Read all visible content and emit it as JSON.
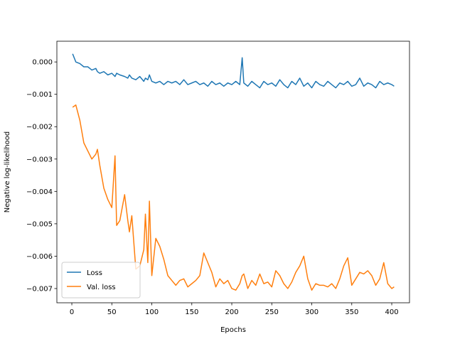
{
  "chart_data": {
    "type": "line",
    "xlabel": "Epochs",
    "ylabel": "Negative log-likelihood",
    "x": [
      1,
      5,
      10,
      15,
      20,
      25,
      30,
      32,
      35,
      40,
      45,
      50,
      54,
      56,
      60,
      66,
      70,
      72,
      75,
      80,
      85,
      90,
      92,
      95,
      97,
      100,
      105,
      110,
      115,
      120,
      125,
      130,
      135,
      140,
      145,
      150,
      155,
      160,
      165,
      170,
      175,
      180,
      185,
      190,
      195,
      200,
      205,
      210,
      213,
      215,
      220,
      225,
      230,
      235,
      240,
      245,
      250,
      255,
      260,
      265,
      270,
      275,
      280,
      285,
      290,
      295,
      300,
      305,
      310,
      315,
      320,
      325,
      330,
      335,
      340,
      345,
      350,
      355,
      360,
      365,
      370,
      375,
      380,
      385,
      390,
      395,
      400,
      403
    ],
    "series": [
      {
        "name": "Loss",
        "color": "#1f77b4",
        "values": [
          0.00025,
          0.0,
          -5e-05,
          -0.00015,
          -0.00015,
          -0.00025,
          -0.0002,
          -0.0003,
          -0.00035,
          -0.0003,
          -0.0004,
          -0.00035,
          -0.00045,
          -0.00035,
          -0.0004,
          -0.00045,
          -0.0005,
          -0.0004,
          -0.0005,
          -0.00055,
          -0.00045,
          -0.0006,
          -0.0005,
          -0.00055,
          -0.0004,
          -0.0006,
          -0.00065,
          -0.0006,
          -0.0007,
          -0.0006,
          -0.00065,
          -0.0006,
          -0.0007,
          -0.00055,
          -0.0007,
          -0.00065,
          -0.0006,
          -0.0007,
          -0.00065,
          -0.00075,
          -0.0006,
          -0.0007,
          -0.00065,
          -0.00075,
          -0.00065,
          -0.0007,
          -0.0006,
          -0.0007,
          0.00013,
          -0.00065,
          -0.00075,
          -0.0006,
          -0.0007,
          -0.0008,
          -0.0006,
          -0.0007,
          -0.00065,
          -0.00075,
          -0.00055,
          -0.0007,
          -0.0008,
          -0.0006,
          -0.0007,
          -0.0005,
          -0.00075,
          -0.00065,
          -0.0008,
          -0.0006,
          -0.0007,
          -0.00075,
          -0.0006,
          -0.0007,
          -0.0008,
          -0.00065,
          -0.0007,
          -0.0006,
          -0.00075,
          -0.0007,
          -0.0005,
          -0.00075,
          -0.00065,
          -0.0007,
          -0.0008,
          -0.0006,
          -0.0007,
          -0.00065,
          -0.0007,
          -0.00075
        ]
      },
      {
        "name": "Val. loss",
        "color": "#ff7f0e",
        "values": [
          -0.0014,
          -0.00133,
          -0.0018,
          -0.0025,
          -0.00275,
          -0.003,
          -0.00285,
          -0.0027,
          -0.0032,
          -0.0039,
          -0.00425,
          -0.0045,
          -0.0029,
          -0.00505,
          -0.0049,
          -0.0041,
          -0.0049,
          -0.00525,
          -0.00475,
          -0.0064,
          -0.0063,
          -0.0058,
          -0.0047,
          -0.0062,
          -0.0043,
          -0.0066,
          -0.00545,
          -0.0057,
          -0.0061,
          -0.0066,
          -0.00675,
          -0.0069,
          -0.00675,
          -0.0067,
          -0.00695,
          -0.00685,
          -0.00675,
          -0.0066,
          -0.0059,
          -0.0062,
          -0.0065,
          -0.00695,
          -0.0067,
          -0.00685,
          -0.00675,
          -0.007,
          -0.00705,
          -0.00685,
          -0.0066,
          -0.00655,
          -0.007,
          -0.00675,
          -0.0069,
          -0.00655,
          -0.00685,
          -0.0068,
          -0.00695,
          -0.00645,
          -0.0066,
          -0.00685,
          -0.007,
          -0.0068,
          -0.0065,
          -0.0063,
          -0.006,
          -0.0067,
          -0.00705,
          -0.00685,
          -0.0069,
          -0.0069,
          -0.00695,
          -0.00685,
          -0.007,
          -0.0067,
          -0.0063,
          -0.00605,
          -0.0069,
          -0.0067,
          -0.0065,
          -0.00655,
          -0.00645,
          -0.0066,
          -0.0069,
          -0.0067,
          -0.0062,
          -0.00685,
          -0.007,
          -0.00695
        ]
      }
    ],
    "xlim": [
      -18.7,
      422.2
    ],
    "xticks": [
      0,
      50,
      100,
      150,
      200,
      250,
      300,
      350,
      400
    ],
    "ylim": [
      -0.00744,
      0.00064
    ],
    "yticks": [
      {
        "value": 0,
        "label": "0.000"
      },
      {
        "value": -0.001,
        "label": "−0.001"
      },
      {
        "value": -0.002,
        "label": "−0.002"
      },
      {
        "value": -0.003,
        "label": "−0.003"
      },
      {
        "value": -0.004,
        "label": "−0.004"
      },
      {
        "value": -0.005,
        "label": "−0.005"
      },
      {
        "value": -0.006,
        "label": "−0.006"
      },
      {
        "value": -0.007,
        "label": "−0.007"
      }
    ],
    "legend": "lower left",
    "grid": false
  }
}
